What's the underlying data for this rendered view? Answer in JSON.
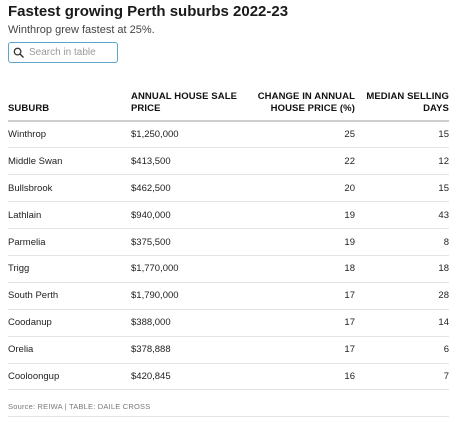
{
  "header": {
    "title": "Fastest growing Perth suburbs 2022-23",
    "subtitle": "Winthrop grew fastest at 25%."
  },
  "search": {
    "placeholder": "Search in table",
    "value": "",
    "icon": "search-icon"
  },
  "table": {
    "columns": [
      "SUBURB",
      "ANNUAL HOUSE SALE PRICE",
      "CHANGE IN ANNUAL HOUSE PRICE (%)",
      "MEDIAN SELLING DAYS"
    ],
    "rows": [
      [
        "Winthrop",
        "$1,250,000",
        "25",
        "15"
      ],
      [
        "Middle Swan",
        "$413,500",
        "22",
        "12"
      ],
      [
        "Bullsbrook",
        "$462,500",
        "20",
        "15"
      ],
      [
        "Lathlain",
        "$940,000",
        "19",
        "43"
      ],
      [
        "Parmelia",
        "$375,500",
        "19",
        "8"
      ],
      [
        "Trigg",
        "$1,770,000",
        "18",
        "18"
      ],
      [
        "South Perth",
        "$1,790,000",
        "17",
        "28"
      ],
      [
        "Coodanup",
        "$388,000",
        "17",
        "14"
      ],
      [
        "Orelia",
        "$378,888",
        "17",
        "6"
      ],
      [
        "Cooloongup",
        "$420,845",
        "16",
        "7"
      ]
    ]
  },
  "footer": {
    "source": "Source: REIWA | TABLE: DAILE CROSS"
  },
  "colors": {
    "search_border": "#5aa6c8",
    "header_rule": "#cfcfcf",
    "row_rule": "#e3e3e3"
  }
}
